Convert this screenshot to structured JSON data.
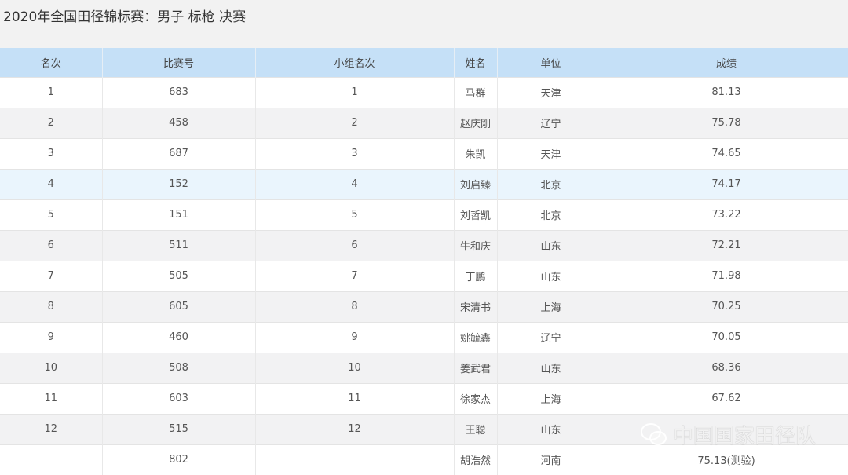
{
  "title": "2020年全国田径锦标赛：男子 标枪 决赛",
  "columns": [
    "名次",
    "比赛号",
    "小组名次",
    "姓名",
    "单位",
    "成绩"
  ],
  "rows": [
    [
      "1",
      "683",
      "1",
      "马群",
      "天津",
      "81.13"
    ],
    [
      "2",
      "458",
      "2",
      "赵庆刚",
      "辽宁",
      "75.78"
    ],
    [
      "3",
      "687",
      "3",
      "朱凯",
      "天津",
      "74.65"
    ],
    [
      "4",
      "152",
      "4",
      "刘启臻",
      "北京",
      "74.17"
    ],
    [
      "5",
      "151",
      "5",
      "刘哲凯",
      "北京",
      "73.22"
    ],
    [
      "6",
      "511",
      "6",
      "牛和庆",
      "山东",
      "72.21"
    ],
    [
      "7",
      "505",
      "7",
      "丁鹏",
      "山东",
      "71.98"
    ],
    [
      "8",
      "605",
      "8",
      "宋清书",
      "上海",
      "70.25"
    ],
    [
      "9",
      "460",
      "9",
      "姚毓鑫",
      "辽宁",
      "70.05"
    ],
    [
      "10",
      "508",
      "10",
      "姜武君",
      "山东",
      "68.36"
    ],
    [
      "11",
      "603",
      "11",
      "徐家杰",
      "上海",
      "67.62"
    ],
    [
      "12",
      "515",
      "12",
      "王聪",
      "山东",
      ""
    ],
    [
      "",
      "802",
      "",
      "胡浩然",
      "河南",
      "75.13(测验)"
    ]
  ],
  "highlighted_row": 4,
  "watermark": "中国国家田径队",
  "colors": {
    "header": "#c5e0f7",
    "highlight": "#eaf5fd",
    "stripe": "#f2f2f3"
  }
}
